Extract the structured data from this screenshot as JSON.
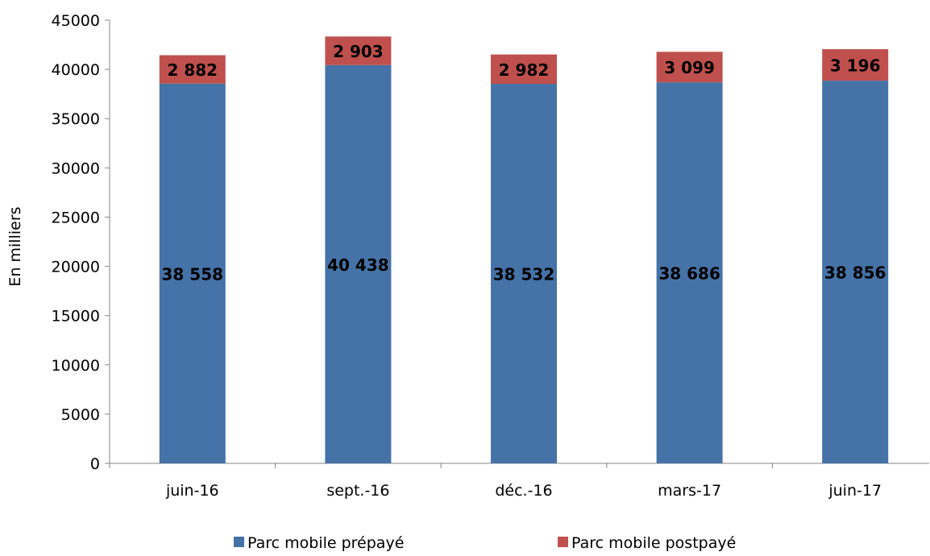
{
  "chart_data": {
    "type": "bar",
    "stacked": true,
    "title": "",
    "xlabel": "",
    "ylabel": "En milliers",
    "ylim": [
      0,
      45000
    ],
    "yticks": [
      0,
      5000,
      10000,
      15000,
      20000,
      25000,
      30000,
      35000,
      40000,
      45000
    ],
    "grid": false,
    "legend_position": "bottom",
    "categories": [
      "juin-16",
      "sept.-16",
      "déc.-16",
      "mars-17",
      "juin-17"
    ],
    "series": [
      {
        "name": "Parc mobile prépayé",
        "color": "#4572A7",
        "values": [
          38558,
          40438,
          38532,
          38686,
          38856
        ],
        "labels": [
          "38 558",
          "40 438",
          "38 532",
          "38 686",
          "38 856"
        ]
      },
      {
        "name": "Parc mobile postpayé",
        "color": "#C0504D",
        "values": [
          2882,
          2903,
          2982,
          3099,
          3196
        ],
        "labels": [
          "2 882",
          "2 903",
          "2 982",
          "3 099",
          "3 196"
        ]
      }
    ]
  }
}
